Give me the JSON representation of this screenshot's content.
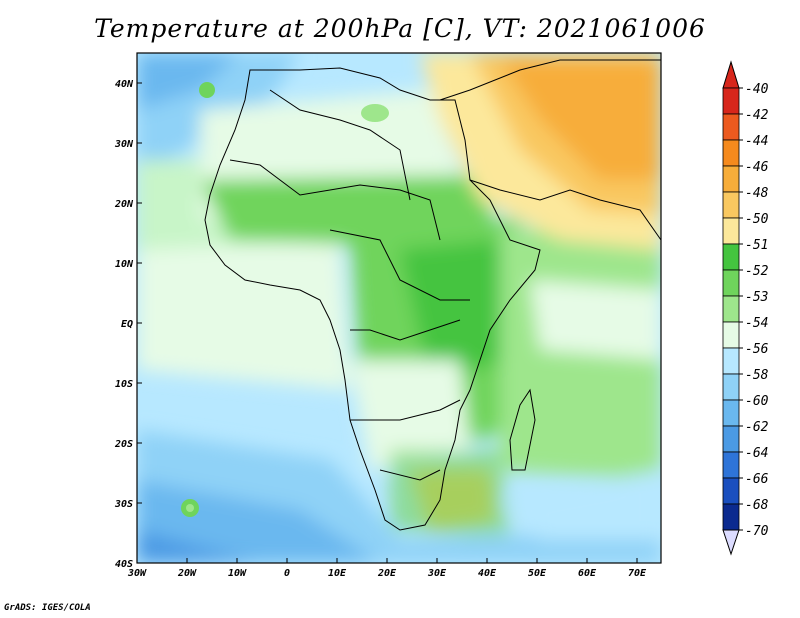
{
  "title": "Temperature at 200hPa [C], VT: 2021061006",
  "credit": "GrADS: IGES/COLA",
  "map": {
    "lon_labels": [
      "30W",
      "20W",
      "10W",
      "0",
      "10E",
      "20E",
      "30E",
      "40E",
      "50E",
      "60E",
      "70E"
    ],
    "lat_labels": [
      "40N",
      "30N",
      "20N",
      "10N",
      "EQ",
      "10S",
      "20S",
      "30S",
      "40S"
    ]
  },
  "colorbar": {
    "labels": [
      "-40",
      "-42",
      "-44",
      "-46",
      "-48",
      "-50",
      "-51",
      "-52",
      "-53",
      "-54",
      "-56",
      "-58",
      "-60",
      "-62",
      "-64",
      "-66",
      "-68",
      "-70"
    ],
    "colors": [
      "#d7261b",
      "#ec5a1f",
      "#f58a1d",
      "#f7ad3a",
      "#f9c860",
      "#fce89b",
      "#44c43f",
      "#6fd45c",
      "#9ee68c",
      "#e6fbe6",
      "#b7e8ff",
      "#8fd2f7",
      "#6ab8ef",
      "#4b9ae4",
      "#2e74d8",
      "#1a4fbf",
      "#0b2a8f"
    ]
  }
}
